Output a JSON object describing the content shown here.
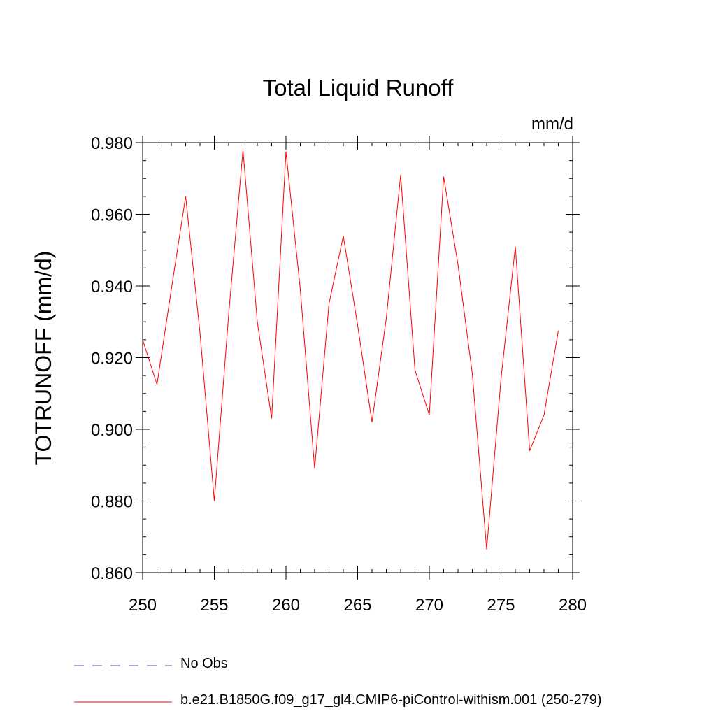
{
  "chart_data": {
    "type": "line",
    "title": "Total Liquid Runoff",
    "units": "mm/d",
    "ylabel": "TOTRUNOFF  (mm/d)",
    "xlabel": "",
    "xlim": [
      250,
      280
    ],
    "ylim": [
      0.86,
      0.98
    ],
    "x_ticks": [
      250,
      255,
      260,
      265,
      270,
      275,
      280
    ],
    "x_tick_labels": [
      "250",
      "255",
      "260",
      "265",
      "270",
      "275",
      "280"
    ],
    "y_ticks": [
      0.86,
      0.88,
      0.9,
      0.92,
      0.94,
      0.96,
      0.98
    ],
    "y_tick_labels": [
      "0.860",
      "0.880",
      "0.900",
      "0.920",
      "0.940",
      "0.960",
      "0.980"
    ],
    "grid": false,
    "legend_position": "bottom",
    "series": [
      {
        "name": "No Obs",
        "color": "#5b4fae",
        "dash": "dashed",
        "x": [],
        "y": []
      },
      {
        "name": "b.e21.B1850G.f09_g17_gl4.CMIP6-piControl-withism.001 (250-279)",
        "color": "#ff0000",
        "dash": "solid",
        "x": [
          250,
          251,
          252,
          253,
          254,
          255,
          256,
          257,
          258,
          259,
          260,
          261,
          262,
          263,
          264,
          265,
          266,
          267,
          268,
          269,
          270,
          271,
          272,
          273,
          274,
          275,
          276,
          277,
          278,
          279
        ],
        "y": [
          0.925,
          0.9125,
          0.939,
          0.965,
          0.927,
          0.88,
          0.932,
          0.978,
          0.93,
          0.903,
          0.9775,
          0.939,
          0.889,
          0.935,
          0.954,
          0.929,
          0.902,
          0.931,
          0.971,
          0.9165,
          0.904,
          0.9705,
          0.946,
          0.9155,
          0.8665,
          0.914,
          0.951,
          0.894,
          0.904,
          0.9275
        ]
      }
    ]
  }
}
